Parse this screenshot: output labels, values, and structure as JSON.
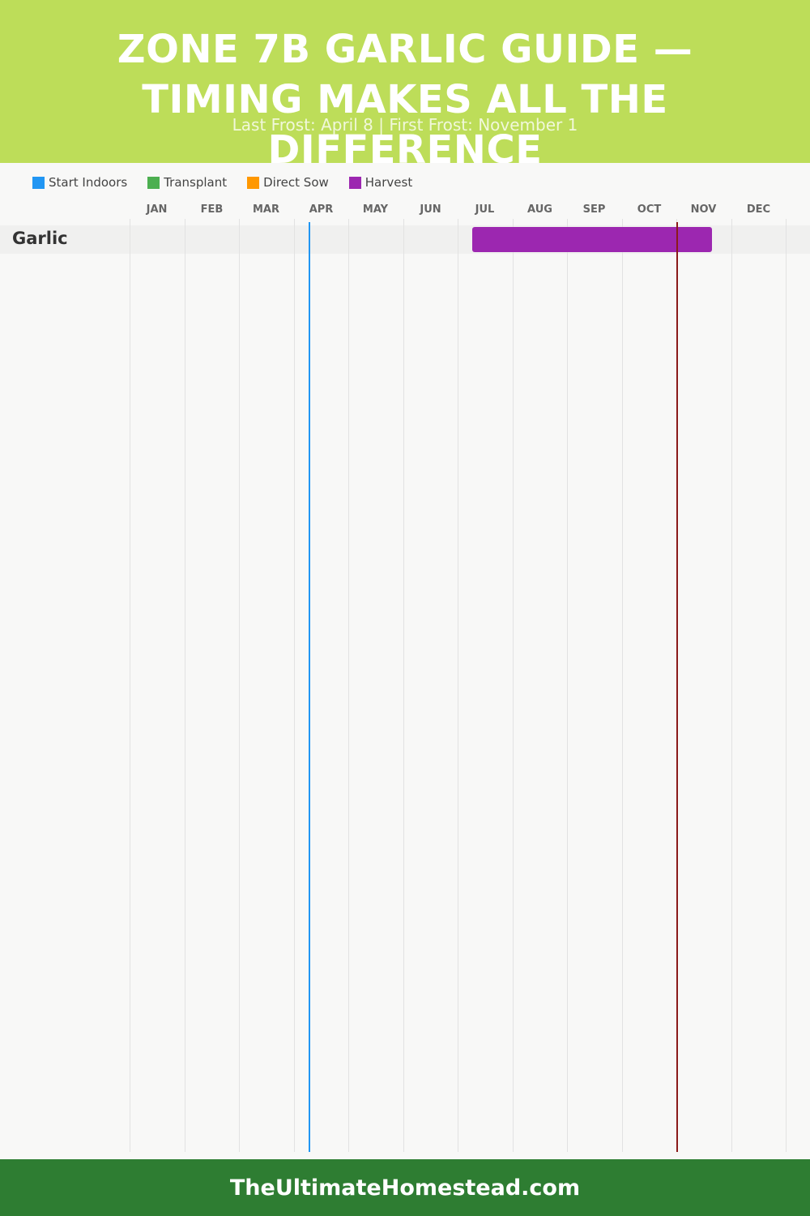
{
  "header": {
    "title": "ZONE 7B GARLIC GUIDE — TIMING MAKES ALL THE DIFFERENCE",
    "subtitle": "Last Frost: April 8 | First Frost: November 1",
    "background_color": "#bddd59"
  },
  "legend": {
    "items": [
      {
        "label": "Start Indoors",
        "color": "#2196f3"
      },
      {
        "label": "Transplant",
        "color": "#4caf50"
      },
      {
        "label": "Direct Sow",
        "color": "#ff9800"
      },
      {
        "label": "Harvest",
        "color": "#9c27b0"
      }
    ]
  },
  "footer": {
    "text": "TheUltimateHomestead.com",
    "background_color": "#2e7d32"
  },
  "chart_data": {
    "type": "gantt",
    "months": [
      "JAN",
      "FEB",
      "MAR",
      "APR",
      "MAY",
      "JUN",
      "JUL",
      "AUG",
      "SEP",
      "OCT",
      "NOV",
      "DEC"
    ],
    "crops": [
      {
        "name": "Garlic",
        "bars": [
          {
            "phase": "Harvest",
            "start_month": 6.27,
            "end_month": 10.66,
            "color": "#9c27b0"
          }
        ]
      }
    ],
    "frost_lines": [
      {
        "type": "last_frost",
        "month_value": 3.27,
        "color": "#2196f3"
      },
      {
        "type": "first_frost",
        "month_value": 10.0,
        "color": "#8b1a1a"
      }
    ]
  }
}
